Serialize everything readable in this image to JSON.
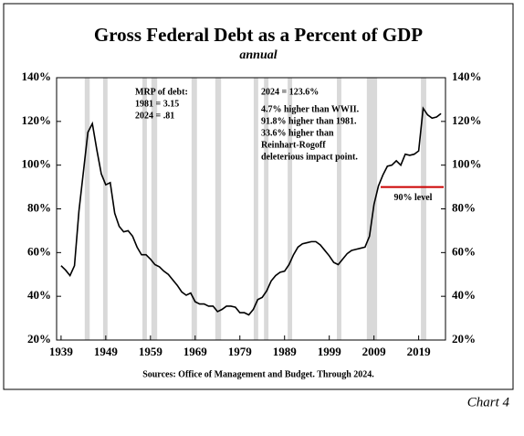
{
  "chart_data": {
    "type": "line",
    "title": "Gross Federal Debt as a Percent of GDP",
    "subtitle": "annual",
    "x": [
      1939,
      1940,
      1941,
      1942,
      1943,
      1944,
      1945,
      1946,
      1947,
      1948,
      1949,
      1950,
      1951,
      1952,
      1953,
      1954,
      1955,
      1956,
      1957,
      1958,
      1959,
      1960,
      1961,
      1962,
      1963,
      1964,
      1965,
      1966,
      1967,
      1968,
      1969,
      1970,
      1971,
      1972,
      1973,
      1974,
      1975,
      1976,
      1977,
      1978,
      1979,
      1980,
      1981,
      1982,
      1983,
      1984,
      1985,
      1986,
      1987,
      1988,
      1989,
      1990,
      1991,
      1992,
      1993,
      1994,
      1995,
      1996,
      1997,
      1998,
      1999,
      2000,
      2001,
      2002,
      2003,
      2004,
      2005,
      2006,
      2007,
      2008,
      2009,
      2010,
      2011,
      2012,
      2013,
      2014,
      2015,
      2016,
      2017,
      2018,
      2019,
      2020,
      2021,
      2022,
      2023,
      2024
    ],
    "values": [
      54,
      52,
      49.5,
      54,
      79,
      97,
      115,
      119,
      107,
      96,
      91,
      92,
      78,
      72,
      69.5,
      70,
      67.5,
      62.5,
      59,
      59,
      57,
      54.5,
      53.5,
      51.5,
      50,
      47.5,
      45,
      42,
      40.5,
      41.5,
      37.5,
      36.5,
      36.5,
      35.5,
      35.5,
      33,
      34,
      35.5,
      35.5,
      35,
      32.5,
      32.5,
      31.5,
      34,
      38.5,
      39.5,
      42.5,
      47,
      49.5,
      51,
      51.5,
      54.5,
      59,
      62.5,
      64,
      64.5,
      65,
      65,
      63.5,
      61,
      58.5,
      55.5,
      54.5,
      57,
      59.5,
      61,
      61.5,
      62,
      62.5,
      67.5,
      82,
      90.5,
      95.5,
      99.5,
      100,
      102,
      100,
      105,
      104.5,
      105,
      106.5,
      126,
      123,
      121.5,
      122,
      123.6
    ],
    "color": "#000000",
    "xlim": [
      1938,
      2025
    ],
    "xticks": [
      1939,
      1949,
      1959,
      1969,
      1979,
      1989,
      1999,
      2009,
      2019
    ],
    "ylim": [
      20,
      140
    ],
    "yticks": [
      {
        "value": 20,
        "label": "20%"
      },
      {
        "value": 40,
        "label": "40%"
      },
      {
        "value": 60,
        "label": "60%"
      },
      {
        "value": 80,
        "label": "80%"
      },
      {
        "value": 100,
        "label": "100%"
      },
      {
        "value": 120,
        "label": "120%"
      },
      {
        "value": 140,
        "label": "140%"
      }
    ],
    "shading_color": "#d9d9d9",
    "shading": [
      [
        1944.3,
        1945.4
      ],
      [
        1948.4,
        1949.4
      ],
      [
        1957.2,
        1958.2
      ],
      [
        1959.2,
        1960.5
      ],
      [
        1968.2,
        1969.4
      ],
      [
        1973.5,
        1974.8
      ],
      [
        1982.1,
        1983.1
      ],
      [
        1984.4,
        1985.4
      ],
      [
        1989.7,
        1990.7
      ],
      [
        2000.7,
        2001.7
      ],
      [
        2007.4,
        2009.7
      ],
      [
        2019.5,
        2020.7
      ]
    ],
    "reference_line": {
      "value": 90,
      "label": "90% level",
      "color": "#cc0000",
      "x_start": 2010.5
    },
    "annotations": [
      [
        "MRP of debt:",
        "1981 = 3.15",
        "2024 = .81"
      ],
      [
        "2024 = 123.6%"
      ],
      [
        "4.7% higher than WWII.",
        "91.8% higher than 1981.",
        "33.6% higher than",
        "Reinhart-Rogoff",
        "deleterious impact point."
      ]
    ],
    "source": "Sources: Office of Management and Budget. Through 2024.",
    "chart_label": "Chart 4"
  }
}
